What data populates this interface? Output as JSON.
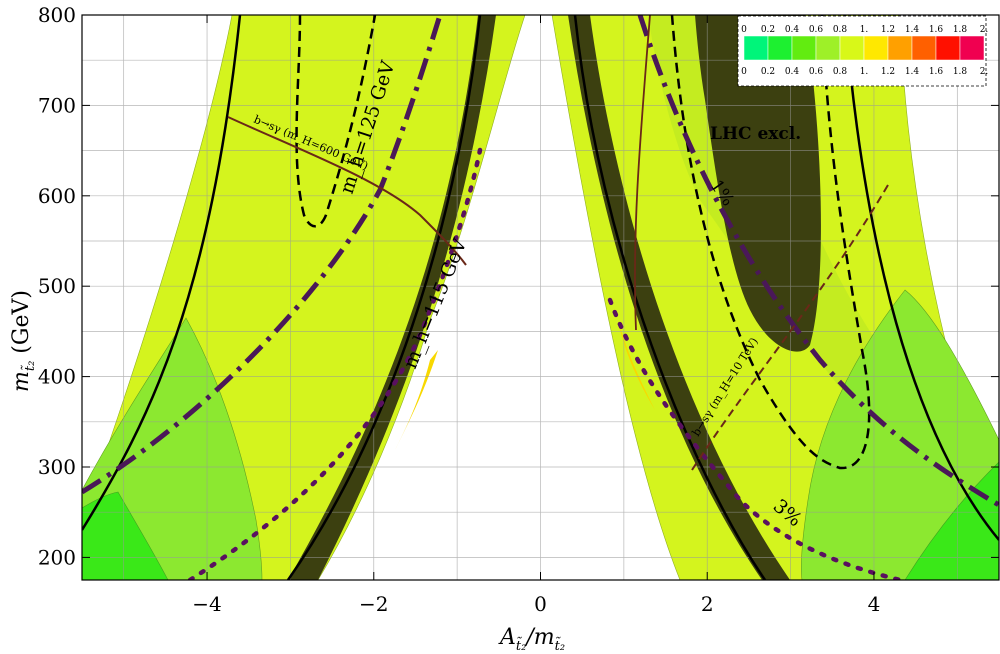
{
  "chart_data": {
    "type": "contour",
    "xlabel": "A_t2/m_t2",
    "ylabel": "m_t2 (GeV)",
    "xlim": [
      -5.5,
      5.5
    ],
    "ylim": [
      175,
      800
    ],
    "x_ticks": [
      -4,
      -2,
      0,
      2,
      4
    ],
    "x_tick_labels": [
      "−4",
      "−2",
      "0",
      "2",
      "4"
    ],
    "y_ticks": [
      200,
      300,
      400,
      500,
      600,
      700,
      800
    ],
    "y_tick_labels": [
      "200",
      "300",
      "400",
      "500",
      "600",
      "700",
      "800"
    ],
    "grid": true,
    "legend": {
      "placement": "top-right",
      "bins": [
        0,
        0.2,
        0.4,
        0.6,
        0.8,
        1.0,
        1.2,
        1.4,
        1.6,
        1.8,
        2.0
      ],
      "bin_labels": [
        "0",
        "0.2",
        "0.4",
        "0.6",
        "0.8",
        "1.",
        "1.2",
        "1.4",
        "1.6",
        "1.8",
        "2."
      ],
      "colors": [
        "#00f57a",
        "#1df030",
        "#62ec10",
        "#9ef028",
        "#d8f818",
        "#ffe800",
        "#ffa000",
        "#ff6000",
        "#ff1000",
        "#f00050"
      ]
    },
    "colors": {
      "band_light": "#d6f520",
      "band_mid": "#c4ec20",
      "region_green": "#8ce830",
      "region_bright": "#3ae818",
      "excluded": "#3c4010",
      "yellow": "#f8d800",
      "dashdot": "#4a1858",
      "dotted": "#5a1060",
      "bsg": "#6a2818"
    },
    "annotations": {
      "mh125": "m_h=125 GeV",
      "mh115": "m_h=115 GeV",
      "lhc": "LHC excl.",
      "bsg_left": "b→sγ (m_H=600 GeV)",
      "bsg_right": "b→sγ (m_H=10 TeV)",
      "pct1": "1%",
      "pct3": "3%"
    },
    "series": [
      {
        "name": "m_h=125 GeV (left)",
        "style": "dashed",
        "points": [
          [
            -2.45,
            800
          ],
          [
            -2.65,
            700
          ],
          [
            -2.8,
            610
          ],
          [
            -2.72,
            568
          ],
          [
            -2.55,
            600
          ],
          [
            -2.2,
            720
          ],
          [
            -2.0,
            800
          ]
        ]
      },
      {
        "name": "m_h=125 GeV (right)",
        "style": "dashed",
        "points": [
          [
            1.6,
            800
          ],
          [
            1.8,
            600
          ],
          [
            2.2,
            460
          ],
          [
            2.8,
            370
          ],
          [
            3.5,
            300
          ],
          [
            3.8,
            330
          ],
          [
            3.8,
            480
          ],
          [
            3.5,
            660
          ],
          [
            3.4,
            800
          ]
        ]
      },
      {
        "name": "m_h=115 GeV (left)",
        "style": "solid",
        "points": [
          [
            -5.5,
            225
          ],
          [
            -4.5,
            360
          ],
          [
            -3.6,
            600
          ],
          [
            -3.35,
            800
          ],
          [
            -0.6,
            800
          ],
          [
            -1.3,
            440
          ],
          [
            -3.0,
            175
          ]
        ]
      },
      {
        "name": "m_h=115 GeV (right)",
        "style": "solid",
        "points": [
          [
            0.6,
            800
          ],
          [
            1.2,
            400
          ],
          [
            2.9,
            175
          ],
          [
            3.9,
            175
          ],
          [
            4.2,
            600
          ],
          [
            4.8,
            800
          ]
        ]
      },
      {
        "name": "1%",
        "style": "dash-dot",
        "points": [
          [
            -5.5,
            240
          ],
          [
            -4.5,
            300
          ],
          [
            -3.2,
            420
          ],
          [
            -2.2,
            560
          ],
          [
            -1.3,
            800
          ],
          [
            1.3,
            800
          ],
          [
            2.5,
            560
          ],
          [
            3.5,
            400
          ],
          [
            4.5,
            330
          ],
          [
            5.5,
            260
          ]
        ]
      },
      {
        "name": "3%",
        "style": "dotted",
        "points": [
          [
            -3.6,
            175
          ],
          [
            -2.0,
            290
          ],
          [
            -1.0,
            460
          ],
          [
            0.95,
            500
          ],
          [
            2.0,
            330
          ],
          [
            3.5,
            215
          ],
          [
            4.0,
            175
          ]
        ]
      }
    ]
  }
}
